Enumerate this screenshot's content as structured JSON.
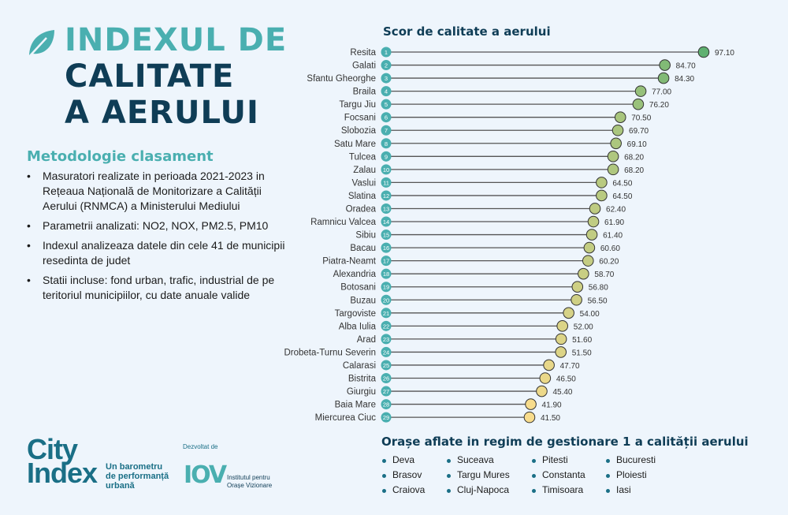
{
  "header": {
    "title_line1": "INDEXUL DE",
    "title_line2": "CALITATE",
    "title_line3": "A AERULUI",
    "icon": "leaf-icon"
  },
  "methodology": {
    "heading": "Metodologie clasament",
    "items": [
      "Masuratori realizate in perioada 2021-2023 in Rețeaua Națională de Monitorizare a Calității Aerului (RNMCA) a Ministerului Mediului",
      "Parametrii analizati: NO2, NOX, PM2.5, PM10",
      "Indexul analizeaza datele din cele 41 de municipii resedinta de judet",
      "Statii incluse: fond urban, trafic, industrial de pe teritoriul municipiilor, cu date anuale valide"
    ]
  },
  "chart_data": {
    "type": "lollipop",
    "title": "Scor de calitate a aerului",
    "categories": [
      "Resita",
      "Galati",
      "Sfantu Gheorghe",
      "Braila",
      "Targu Jiu",
      "Focsani",
      "Slobozia",
      "Satu Mare",
      "Tulcea",
      "Zalau",
      "Vaslui",
      "Slatina",
      "Oradea",
      "Ramnicu Valcea",
      "Sibiu",
      "Bacau",
      "Piatra-Neamt",
      "Alexandria",
      "Botosani",
      "Buzau",
      "Targoviste",
      "Alba Iulia",
      "Arad",
      "Drobeta-Turnu Severin",
      "Calarasi",
      "Bistrita",
      "Giurgiu",
      "Baia Mare",
      "Miercurea Ciuc"
    ],
    "ranks": [
      1,
      2,
      3,
      4,
      5,
      6,
      7,
      8,
      9,
      10,
      11,
      12,
      13,
      14,
      15,
      16,
      17,
      18,
      19,
      20,
      21,
      22,
      23,
      24,
      25,
      26,
      27,
      28,
      29
    ],
    "values": [
      97.1,
      84.7,
      84.3,
      77.0,
      76.2,
      70.5,
      69.7,
      69.1,
      68.2,
      68.2,
      64.5,
      64.5,
      62.4,
      61.9,
      61.4,
      60.6,
      60.2,
      58.7,
      56.8,
      56.5,
      54.0,
      52.0,
      51.6,
      51.5,
      47.7,
      46.5,
      45.4,
      41.9,
      41.5
    ],
    "value_labels": [
      "97.10",
      "84.70",
      "84.30",
      "77.00",
      "76.20",
      "70.50",
      "69.70",
      "69.10",
      "68.20",
      "68.20",
      "64.50",
      "64.50",
      "62.40",
      "61.90",
      "61.40",
      "60.60",
      "60.20",
      "58.70",
      "56.80",
      "56.50",
      "54.00",
      "52.00",
      "51.60",
      "51.50",
      "47.70",
      "46.50",
      "45.40",
      "41.90",
      "41.50"
    ],
    "color_scale": {
      "high": "#5fb070",
      "low": "#f8dc8c"
    },
    "rank_badge_color": "#4aafb0",
    "grid": false
  },
  "footer": {
    "logo_line1": "City",
    "logo_line2": "Index",
    "tagline": [
      "Un barometru",
      "de performanță",
      "urbană"
    ],
    "developed_by": "Dezvoltat de",
    "org_logo": "IOV",
    "org_name": [
      "Institutul pentru",
      "Orașe Vizionare"
    ]
  },
  "management": {
    "heading": "Orașe aflate in regim de gestionare 1 a calității aerului",
    "columns": [
      [
        "Deva",
        "Brasov",
        "Craiova"
      ],
      [
        "Suceava",
        "Targu Mures",
        "Cluj-Napoca"
      ],
      [
        "Pitesti",
        "Constanta",
        "Timisoara"
      ],
      [
        "Bucuresti",
        "Ploiesti",
        "Iasi"
      ]
    ]
  }
}
